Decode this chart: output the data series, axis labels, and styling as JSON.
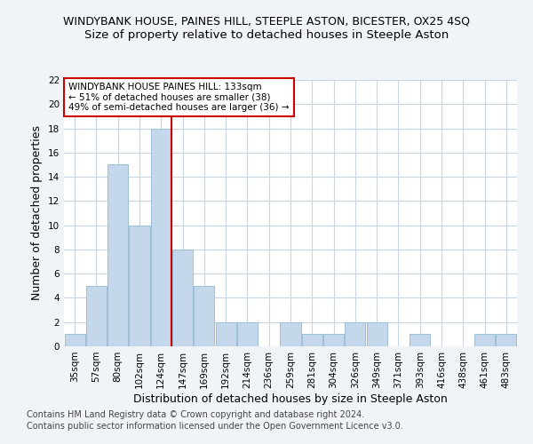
{
  "title1": "WINDYBANK HOUSE, PAINES HILL, STEEPLE ASTON, BICESTER, OX25 4SQ",
  "title2": "Size of property relative to detached houses in Steeple Aston",
  "xlabel": "Distribution of detached houses by size in Steeple Aston",
  "ylabel": "Number of detached properties",
  "categories": [
    "35sqm",
    "57sqm",
    "80sqm",
    "102sqm",
    "124sqm",
    "147sqm",
    "169sqm",
    "192sqm",
    "214sqm",
    "236sqm",
    "259sqm",
    "281sqm",
    "304sqm",
    "326sqm",
    "349sqm",
    "371sqm",
    "393sqm",
    "416sqm",
    "438sqm",
    "461sqm",
    "483sqm"
  ],
  "values": [
    1,
    5,
    15,
    10,
    18,
    8,
    5,
    2,
    2,
    0,
    2,
    1,
    1,
    2,
    2,
    0,
    1,
    0,
    0,
    1,
    1
  ],
  "bar_color": "#c5d8eb",
  "bar_edge_color": "#9bbfd8",
  "highlight_line_index": 4,
  "highlight_line_color": "#cc0000",
  "ylim": [
    0,
    22
  ],
  "yticks": [
    0,
    2,
    4,
    6,
    8,
    10,
    12,
    14,
    16,
    18,
    20,
    22
  ],
  "annotation_title": "WINDYBANK HOUSE PAINES HILL: 133sqm",
  "annotation_line1": "← 51% of detached houses are smaller (38)",
  "annotation_line2": "49% of semi-detached houses are larger (36) →",
  "annotation_box_color": "#cc0000",
  "footer1": "Contains HM Land Registry data © Crown copyright and database right 2024.",
  "footer2": "Contains public sector information licensed under the Open Government Licence v3.0.",
  "bg_color": "#f0f4f8",
  "plot_bg_color": "#ffffff",
  "grid_color": "#c8d4e0",
  "title1_fontsize": 9,
  "title2_fontsize": 9.5,
  "axis_label_fontsize": 9,
  "tick_fontsize": 7.5,
  "footer_fontsize": 7,
  "annotation_fontsize": 7.5
}
